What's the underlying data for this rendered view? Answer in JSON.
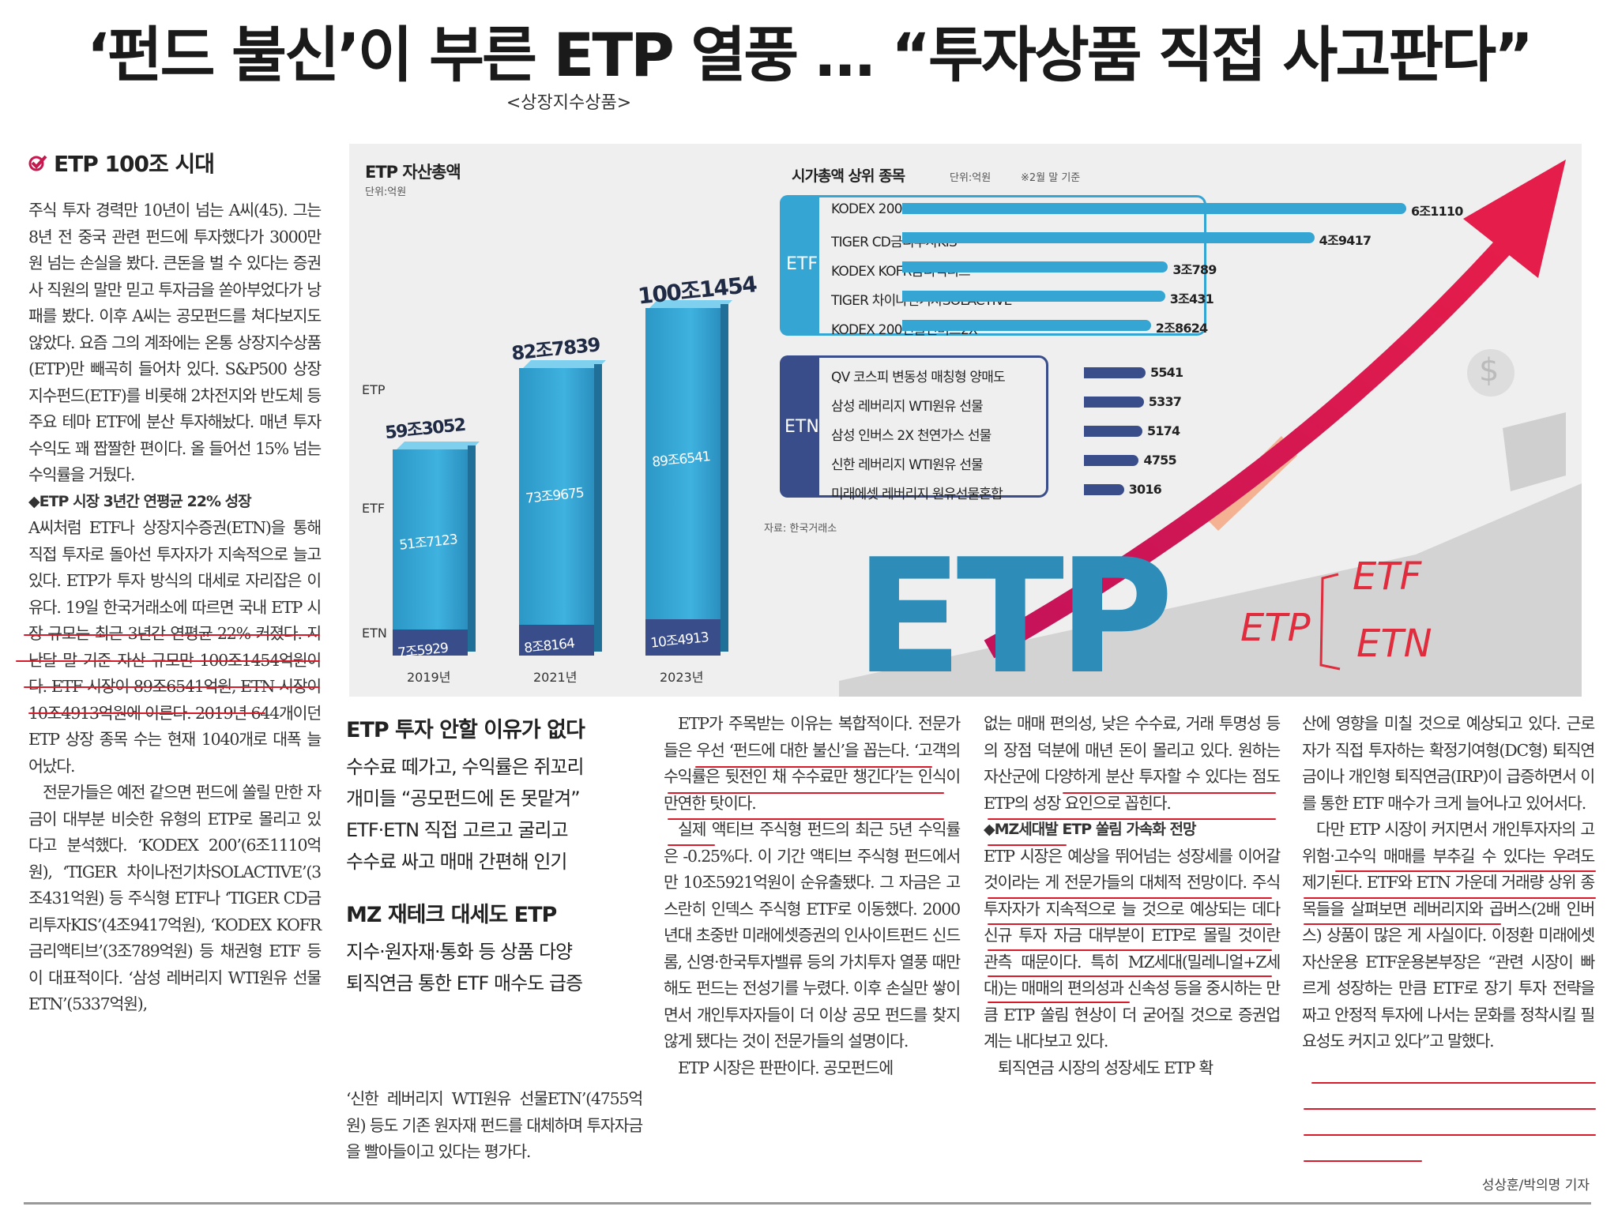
{
  "headline": "‘펀드 불신’이 부른 ETP 열풍 … “투자상품 직접 사고판다”",
  "subhead": "<상장지수상품>",
  "section_title": "ETP 100조 시대",
  "col1": [
    "주식 투자 경력만 10년이 넘는 A씨(45). 그는 8년 전 중국 관련 펀드에 투자했다가 3000만원 넘는 손실을 봤다. 큰돈을 벌 수 있다는 증권사 직원의 말만 믿고 투자금을 쏟아부었다가 낭패를 봤다. 이후 A씨는 공모펀드를 쳐다보지도 않았다. 요즘 그의 계좌에는 온통 상장지수상품(ETP)만 빼곡히 들어차 있다. S&P500 상장지수펀드(ETF)를 비롯해 2차전지와 반도체 등 주요 테마 ETF에 분산 투자해놨다. 매년 투자 수익도 꽤 짭짤한 편이다. 올 들어선 15% 넘는 수익률을 거뒀다.",
    "◆ETP 시장 3년간 연평균 22% 성장",
    "A씨처럼 ETF나 상장지수증권(ETN)을 통해 직접 투자로 돌아선 투자자가 지속적으로 늘고 있다. ETP가 투자 방식의 대세로 자리잡은 이유다. 19일 한국거래소에 따르면 국내 ETP 시장 규모는 최근 3년간 연평균 22% 커졌다. 지난달 말 기준 자산 규모만 100조1454억원이다. ETF 시장이 89조6541억원, ETN 시장이 10조4913억원에 이른다. 2019년 644개이던 ETP 상장 종목 수는 현재 1040개로 대폭 늘어났다.",
    "전문가들은 예전 같으면 펀드에 쏠릴 만한 자금이 대부분 비슷한 유형의 ETP로 몰리고 있다고 분석했다. ‘KODEX 200’(6조1110억원), ‘TIGER 차이나전기차SOLACTIVE’(3조431억원) 등 주식형 ETF나 ‘TIGER CD금리투자KIS’(4조9417억원), ‘KODEX KOFR금리액티브’(3조789억원) 등 채권형 ETF 등이 대표적이다. ‘삼성 레버리지 WTI원유 선물ETN’(5337억원),"
  ],
  "col2_subheads": [
    "ETP 투자 안할 이유가 없다",
    "수수료 떼가고, 수익률은 쥐꼬리",
    "개미들 “공모펀드에 돈 못맡겨”",
    "ETF·ETN 직접 고르고 굴리고",
    "수수료 싸고 매매 간편해 인기",
    "MZ 재테크 대세도 ETP",
    "지수·원자재·통화 등 상품 다양",
    "퇴직연금 통한 ETF 매수도 급증"
  ],
  "col2_text": "‘신한 레버리지 WTI원유 선물ETN’(4755억원) 등도 기존 원자재 펀드를 대체하며 투자자금을 빨아들이고 있다는 평가다.",
  "col3": [
    "ETP가 주목받는 이유는 복합적이다. 전문가들은 우선 ‘펀드에 대한 불신’을 꼽는다. ‘고객의 수익률은 뒷전인 채 수수료만 챙긴다’는 인식이 만연한 탓이다.",
    "실제 액티브 주식형 펀드의 최근 5년 수익률은 -0.25%다. 이 기간 액티브 주식형 펀드에서만 10조5921억원이 순유출됐다. 그 자금은 고스란히 인덱스 주식형 ETF로 이동했다. 2000년대 초중반 미래에셋증권의 인사이트펀드 신드롬, 신영·한국투자밸류 등의 가치투자 열풍 때만 해도 펀드는 전성기를 누렸다. 이후 손실만 쌓이면서 개인투자자들이 더 이상 공모 펀드를 찾지 않게 됐다는 것이 전문가들의 설명이다.",
    "ETP 시장은 판판이다. 공모펀드에"
  ],
  "col4": [
    "없는 매매 편의성, 낮은 수수료, 거래 투명성 등의 장점 덕분에 매년 돈이 몰리고 있다. 원하는 자산군에 다양하게 분산 투자할 수 있다는 점도 ETP의 성장 요인으로 꼽힌다.",
    "◆MZ세대발 ETP 쏠림 가속화 전망",
    "ETP 시장은 예상을 뛰어넘는 성장세를 이어갈 것이라는 게 전문가들의 대체적 전망이다. 주식 투자자가 지속적으로 늘 것으로 예상되는 데다 신규 투자 자금 대부분이 ETP로 몰릴 것이란 관측 때문이다. 특히 MZ세대(밀레니얼+Z세대)는 매매의 편의성과 신속성 등을 중시하는 만큼 ETP 쏠림 현상이 더 굳어질 것으로 증권업계는 내다보고 있다.",
    "퇴직연금 시장의 성장세도 ETP 확"
  ],
  "col5": [
    "산에 영향을 미칠 것으로 예상되고 있다. 근로자가 직접 투자하는 확정기여형(DC형) 퇴직연금이나 개인형 퇴직연금(IRP)이 급증하면서 이를 통한 ETF 매수가 크게 늘어나고 있어서다.",
    "다만 ETP 시장이 커지면서 개인투자자의 고위험·고수익 매매를 부추길 수 있다는 우려도 제기된다. ETF와 ETN 가운데 거래량 상위 종목들을 살펴보면 레버리지와 곱버스(2배 인버스) 상품이 많은 게 사실이다. 이정환 미래에셋자산운용 ETF운용본부장은 “관련 시장이 빠르게 성장하는 만큼 ETF로 장기 투자 전략을 짜고 안정적 투자에 나서는 문화를 정착시킬 필요성도 커지고 있다”고 말했다."
  ],
  "byline": "성상훈/박의명 기자",
  "handwriting": {
    "left": "ETP",
    "top": "ETF",
    "bottom": "ETN"
  },
  "chart_data": [
    {
      "type": "bar",
      "title": "ETP 자산총액",
      "unit": "단위:억원",
      "categories": [
        "2019년",
        "2021년",
        "2023년"
      ],
      "totals": [
        "59조3052",
        "82조7839",
        "100조1454"
      ],
      "total_label": "ETP",
      "series": [
        {
          "name": "ETF",
          "labels": [
            "51조7123",
            "73조9675",
            "89조6541"
          ],
          "values": [
            517123,
            739675,
            896541
          ]
        },
        {
          "name": "ETN",
          "labels": [
            "7조5929",
            "8조8164",
            "10조4913"
          ],
          "values": [
            75929,
            88164,
            104913
          ]
        }
      ],
      "colors": {
        "ETF": "#35a6d4",
        "ETN": "#3a4d8b"
      }
    },
    {
      "type": "bar",
      "title": "시가총액 상위 종목",
      "unit": "단위:억원",
      "note": "※2월 말 기준",
      "source": "자료: 한국거래소",
      "groups": [
        {
          "name": "ETF",
          "items": [
            {
              "label": "KODEX 200",
              "value_label": "6조1110",
              "value": 61110
            },
            {
              "label": "TIGER CD금리투자KIS",
              "value_label": "4조9417",
              "value": 49417
            },
            {
              "label": "KODEX KOFR금리액티브",
              "value_label": "3조789",
              "value": 30789
            },
            {
              "label": "TIGER 차이나전기차SOLACTIVE",
              "value_label": "3조431",
              "value": 30431
            },
            {
              "label": "KODEX 200선물인버스2X",
              "value_label": "2조8624",
              "value": 28624
            }
          ]
        },
        {
          "name": "ETN",
          "items": [
            {
              "label": "QV 코스피 변동성 매칭형 양매도",
              "value_label": "5541",
              "value": 5541
            },
            {
              "label": "삼성 레버리지 WTI원유 선물",
              "value_label": "5337",
              "value": 5337
            },
            {
              "label": "삼성 인버스 2X 천연가스 선물",
              "value_label": "5174",
              "value": 5174
            },
            {
              "label": "신한 레버리지 WTI원유 선물",
              "value_label": "4755",
              "value": 4755
            },
            {
              "label": "미래에셋 레버리지 원유선물혼합",
              "value_label": "3016",
              "value": 3016
            }
          ]
        }
      ],
      "colors": {
        "ETF": "#35a6d4",
        "ETN": "#3a4d8b"
      }
    }
  ],
  "graphic_wordmark": "ETP"
}
